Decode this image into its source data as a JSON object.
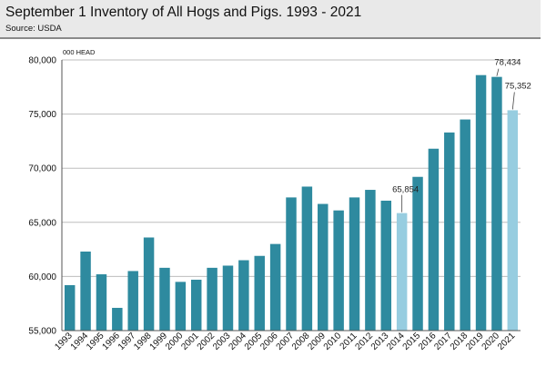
{
  "chart_data": {
    "type": "bar",
    "title": "September 1 Inventory of All Hogs and Pigs. 1993 - 2021",
    "source": "Source: USDA",
    "ylabel": "000 HEAD",
    "xlabel": "",
    "ylim": [
      55000,
      80000
    ],
    "yticks": [
      "55,000",
      "60,000",
      "65,000",
      "70,000",
      "75,000",
      "80,000"
    ],
    "ytick_values": [
      55000,
      60000,
      65000,
      70000,
      75000,
      80000
    ],
    "grid": true,
    "categories": [
      "1993",
      "1994",
      "1995",
      "1996",
      "1997",
      "1998",
      "1999",
      "2000",
      "2001",
      "2002",
      "2003",
      "2004",
      "2005",
      "2006",
      "2007",
      "2008",
      "2009",
      "2010",
      "2011",
      "2012",
      "2013",
      "2014",
      "2015",
      "2016",
      "2017",
      "2018",
      "2019",
      "2020",
      "2021"
    ],
    "values": [
      59200,
      62300,
      60200,
      57100,
      60500,
      63600,
      60800,
      59500,
      59700,
      60800,
      61000,
      61500,
      61900,
      63000,
      67300,
      68300,
      66700,
      66100,
      67300,
      68000,
      67000,
      65854,
      69200,
      71800,
      73300,
      74500,
      78600,
      78434,
      75352
    ],
    "colors": {
      "default": "#2e8a9f",
      "highlight": "#97cde0",
      "grid": "#bdbdbd",
      "axis": "#555555"
    },
    "highlight_categories": [
      "2014",
      "2021"
    ],
    "data_labels": [
      {
        "category": "2014",
        "text": "65,854"
      },
      {
        "category": "2020",
        "text": "78,434"
      },
      {
        "category": "2021",
        "text": "75,352"
      }
    ]
  }
}
